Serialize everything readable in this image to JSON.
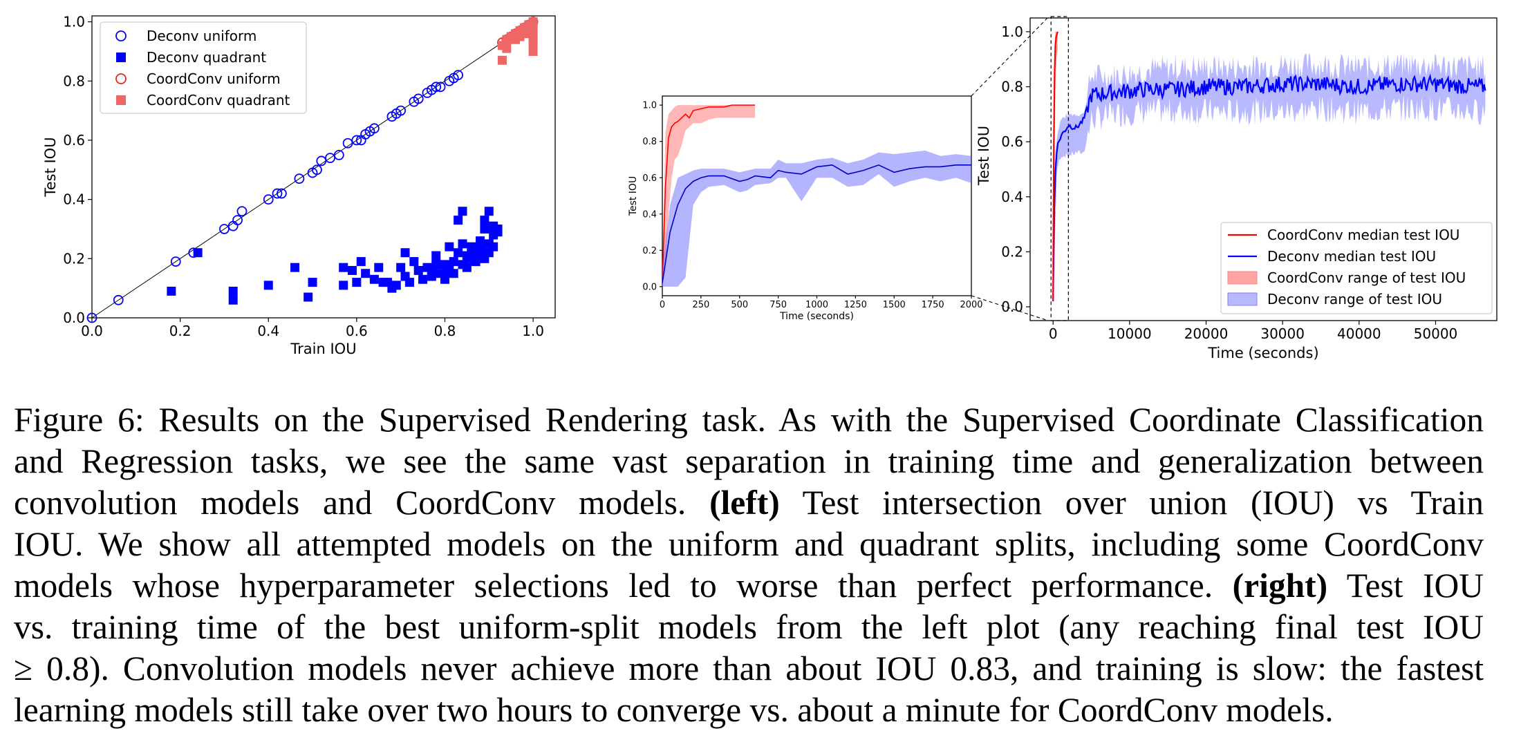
{
  "chart_data": [
    {
      "type": "scatter",
      "xlabel": "Train IOU",
      "ylabel": "Test IOU",
      "xlim": [
        0.0,
        1.05
      ],
      "ylim": [
        0.0,
        1.02
      ],
      "xticks": [
        "0.0",
        "0.2",
        "0.4",
        "0.6",
        "0.8",
        "1.0"
      ],
      "yticks": [
        "0.0",
        "0.2",
        "0.4",
        "0.6",
        "0.8",
        "1.0"
      ],
      "legend_position": "top-left",
      "diagonal_reference_line": true,
      "series": [
        {
          "name": "Deconv uniform",
          "marker": "open-circle",
          "color": "#0000ff",
          "points": [
            [
              0,
              0
            ],
            [
              0.06,
              0.06
            ],
            [
              0.19,
              0.19
            ],
            [
              0.23,
              0.22
            ],
            [
              0.3,
              0.3
            ],
            [
              0.32,
              0.31
            ],
            [
              0.33,
              0.33
            ],
            [
              0.34,
              0.36
            ],
            [
              0.4,
              0.4
            ],
            [
              0.42,
              0.42
            ],
            [
              0.43,
              0.42
            ],
            [
              0.47,
              0.47
            ],
            [
              0.5,
              0.49
            ],
            [
              0.51,
              0.5
            ],
            [
              0.52,
              0.53
            ],
            [
              0.54,
              0.54
            ],
            [
              0.56,
              0.55
            ],
            [
              0.58,
              0.59
            ],
            [
              0.6,
              0.6
            ],
            [
              0.61,
              0.6
            ],
            [
              0.62,
              0.62
            ],
            [
              0.63,
              0.63
            ],
            [
              0.64,
              0.64
            ],
            [
              0.68,
              0.68
            ],
            [
              0.69,
              0.69
            ],
            [
              0.7,
              0.7
            ],
            [
              0.73,
              0.73
            ],
            [
              0.74,
              0.74
            ],
            [
              0.76,
              0.76
            ],
            [
              0.77,
              0.77
            ],
            [
              0.78,
              0.78
            ],
            [
              0.79,
              0.78
            ],
            [
              0.81,
              0.8
            ],
            [
              0.82,
              0.81
            ],
            [
              0.83,
              0.82
            ]
          ]
        },
        {
          "name": "Deconv quadrant",
          "marker": "filled-square",
          "color": "#0000ff",
          "points": [
            [
              0.18,
              0.09
            ],
            [
              0.24,
              0.22
            ],
            [
              0.32,
              0.09
            ],
            [
              0.32,
              0.06
            ],
            [
              0.4,
              0.11
            ],
            [
              0.46,
              0.17
            ],
            [
              0.49,
              0.07
            ],
            [
              0.5,
              0.12
            ],
            [
              0.57,
              0.11
            ],
            [
              0.57,
              0.17
            ],
            [
              0.59,
              0.16
            ],
            [
              0.6,
              0.12
            ],
            [
              0.61,
              0.19
            ],
            [
              0.62,
              0.15
            ],
            [
              0.64,
              0.13
            ],
            [
              0.65,
              0.17
            ],
            [
              0.66,
              0.12
            ],
            [
              0.67,
              0.12
            ],
            [
              0.68,
              0.1
            ],
            [
              0.69,
              0.11
            ],
            [
              0.7,
              0.17
            ],
            [
              0.71,
              0.14
            ],
            [
              0.71,
              0.22
            ],
            [
              0.72,
              0.12
            ],
            [
              0.73,
              0.19
            ],
            [
              0.74,
              0.16
            ],
            [
              0.75,
              0.13
            ],
            [
              0.76,
              0.17
            ],
            [
              0.77,
              0.16
            ],
            [
              0.77,
              0.14
            ],
            [
              0.78,
              0.18
            ],
            [
              0.78,
              0.21
            ],
            [
              0.79,
              0.15
            ],
            [
              0.8,
              0.18
            ],
            [
              0.8,
              0.13
            ],
            [
              0.81,
              0.24
            ],
            [
              0.81,
              0.16
            ],
            [
              0.82,
              0.19
            ],
            [
              0.82,
              0.15
            ],
            [
              0.83,
              0.22
            ],
            [
              0.83,
              0.33
            ],
            [
              0.84,
              0.36
            ],
            [
              0.84,
              0.25
            ],
            [
              0.84,
              0.18
            ],
            [
              0.85,
              0.21
            ],
            [
              0.85,
              0.17
            ],
            [
              0.86,
              0.24
            ],
            [
              0.86,
              0.2
            ],
            [
              0.87,
              0.22
            ],
            [
              0.87,
              0.19
            ],
            [
              0.88,
              0.26
            ],
            [
              0.88,
              0.21
            ],
            [
              0.88,
              0.23
            ],
            [
              0.89,
              0.3
            ],
            [
              0.89,
              0.33
            ],
            [
              0.89,
              0.2
            ],
            [
              0.9,
              0.36
            ],
            [
              0.9,
              0.25
            ],
            [
              0.9,
              0.22
            ],
            [
              0.91,
              0.28
            ],
            [
              0.91,
              0.31
            ],
            [
              0.91,
              0.24
            ],
            [
              0.92,
              0.3
            ],
            [
              0.92,
              0.29
            ]
          ]
        },
        {
          "name": "CoordConv uniform",
          "marker": "open-circle",
          "color": "#ee2222",
          "points": [
            [
              0.93,
              0.93
            ],
            [
              0.94,
              0.94
            ],
            [
              0.95,
              0.95
            ],
            [
              0.96,
              0.96
            ],
            [
              0.97,
              0.97
            ],
            [
              0.98,
              0.98
            ],
            [
              0.99,
              0.99
            ],
            [
              1.0,
              1.0
            ]
          ]
        },
        {
          "name": "CoordConv quadrant",
          "marker": "filled-square",
          "color": "#ee6666",
          "points": [
            [
              0.93,
              0.92
            ],
            [
              0.93,
              0.87
            ],
            [
              0.94,
              0.94
            ],
            [
              0.94,
              0.91
            ],
            [
              0.95,
              0.95
            ],
            [
              0.96,
              0.94
            ],
            [
              0.96,
              0.96
            ],
            [
              0.97,
              0.95
            ],
            [
              0.97,
              0.97
            ],
            [
              0.98,
              0.97
            ],
            [
              0.98,
              0.98
            ],
            [
              0.99,
              0.96
            ],
            [
              0.99,
              0.99
            ],
            [
              1.0,
              0.9
            ],
            [
              1.0,
              0.93
            ],
            [
              1.0,
              0.95
            ],
            [
              1.0,
              0.97
            ],
            [
              1.0,
              0.99
            ],
            [
              1.0,
              1.0
            ]
          ]
        }
      ]
    },
    {
      "type": "line",
      "xlabel": "Time (seconds)",
      "ylabel": "Test IOU",
      "xlim": [
        0,
        2000
      ],
      "ylim": [
        -0.05,
        1.05
      ],
      "xticks": [
        "0",
        "250",
        "500",
        "750",
        "1000",
        "1250",
        "1500",
        "1750",
        "2000"
      ],
      "yticks": [
        "0.0",
        "0.2",
        "0.4",
        "0.6",
        "0.8",
        "1.0"
      ],
      "series": [
        {
          "name": "CoordConv",
          "color": "#ff0000",
          "x": [
            0,
            20,
            40,
            60,
            80,
            100,
            125,
            150,
            175,
            200,
            250,
            300,
            350,
            400,
            450,
            500,
            550,
            600
          ],
          "median": [
            0.02,
            0.55,
            0.82,
            0.88,
            0.9,
            0.91,
            0.93,
            0.95,
            0.93,
            0.97,
            0.98,
            0.99,
            0.99,
            0.99,
            1.0,
            1.0,
            1.0,
            1.0
          ],
          "low": [
            0.0,
            0.1,
            0.4,
            0.6,
            0.7,
            0.72,
            0.78,
            0.86,
            0.88,
            0.9,
            0.9,
            0.92,
            0.93,
            0.93,
            0.93,
            0.93,
            0.93,
            0.93
          ],
          "high": [
            0.1,
            0.85,
            0.95,
            0.97,
            0.99,
            1.0,
            1.0,
            1.0,
            1.0,
            1.0,
            1.0,
            1.0,
            1.0,
            1.0,
            1.0,
            1.0,
            1.0,
            1.0
          ]
        },
        {
          "name": "Deconv",
          "color": "#0000cc",
          "x": [
            0,
            50,
            100,
            150,
            200,
            250,
            300,
            400,
            500,
            550,
            600,
            700,
            750,
            800,
            900,
            1000,
            1100,
            1200,
            1300,
            1400,
            1500,
            1600,
            1700,
            1800,
            1900,
            2000
          ],
          "median": [
            0.02,
            0.3,
            0.45,
            0.54,
            0.58,
            0.6,
            0.61,
            0.61,
            0.58,
            0.59,
            0.61,
            0.6,
            0.64,
            0.63,
            0.62,
            0.66,
            0.67,
            0.62,
            0.64,
            0.67,
            0.63,
            0.65,
            0.66,
            0.66,
            0.67,
            0.67
          ],
          "low": [
            0.0,
            0.0,
            0.0,
            0.05,
            0.45,
            0.52,
            0.55,
            0.56,
            0.52,
            0.53,
            0.56,
            0.57,
            0.6,
            0.6,
            0.47,
            0.6,
            0.6,
            0.55,
            0.56,
            0.62,
            0.55,
            0.58,
            0.6,
            0.58,
            0.6,
            0.57
          ],
          "high": [
            0.1,
            0.45,
            0.6,
            0.62,
            0.64,
            0.65,
            0.65,
            0.65,
            0.63,
            0.64,
            0.65,
            0.65,
            0.7,
            0.68,
            0.68,
            0.7,
            0.71,
            0.68,
            0.7,
            0.74,
            0.73,
            0.74,
            0.75,
            0.72,
            0.73,
            0.72
          ]
        }
      ]
    },
    {
      "type": "line",
      "xlabel": "Time (seconds)",
      "ylabel": "Test IOU",
      "xlim": [
        -3000,
        58000
      ],
      "ylim": [
        -0.05,
        1.05
      ],
      "xticks": [
        "0",
        "10000",
        "20000",
        "30000",
        "40000",
        "50000"
      ],
      "yticks": [
        "0.0",
        "0.2",
        "0.4",
        "0.6",
        "0.8",
        "1.0"
      ],
      "legend_position": "bottom-right",
      "zoom_region_x": [
        0,
        2000
      ],
      "series": [
        {
          "name": "CoordConv median test IOU",
          "color": "#ff0000",
          "x": [
            0,
            100,
            200,
            300,
            400,
            500,
            600
          ],
          "median": [
            0.02,
            0.6,
            0.85,
            0.95,
            0.98,
            0.99,
            1.0
          ]
        },
        {
          "name": "Deconv median test IOU",
          "color": "#0000ff",
          "noise": 0.03,
          "x": [
            0,
            200,
            500,
            1000,
            2000,
            3000,
            4000,
            5000,
            8000,
            12000,
            16000,
            20000,
            25000,
            30000,
            35000,
            40000,
            45000,
            50000,
            55000,
            56500
          ],
          "median": [
            0.02,
            0.45,
            0.58,
            0.62,
            0.66,
            0.65,
            0.68,
            0.77,
            0.78,
            0.79,
            0.79,
            0.8,
            0.8,
            0.81,
            0.81,
            0.8,
            0.81,
            0.81,
            0.8,
            0.8
          ]
        },
        {
          "name": "CoordConv range of test IOU",
          "color": "#ff9999",
          "x": [
            0,
            100,
            200,
            300,
            400,
            500,
            600
          ],
          "low": [
            0.0,
            0.2,
            0.5,
            0.8,
            0.88,
            0.92,
            0.93
          ],
          "high": [
            0.1,
            0.85,
            0.95,
            1.0,
            1.0,
            1.0,
            1.0
          ]
        },
        {
          "name": "Deconv range of test IOU",
          "color": "#9999ff",
          "noise": 0.05,
          "x": [
            0,
            200,
            500,
            1000,
            2000,
            3000,
            4000,
            5000,
            8000,
            12000,
            16000,
            20000,
            25000,
            30000,
            35000,
            40000,
            45000,
            50000,
            55000,
            56500
          ],
          "low": [
            0.0,
            0.2,
            0.5,
            0.55,
            0.55,
            0.56,
            0.56,
            0.68,
            0.7,
            0.71,
            0.71,
            0.71,
            0.71,
            0.71,
            0.72,
            0.71,
            0.72,
            0.72,
            0.71,
            0.71
          ],
          "high": [
            0.1,
            0.55,
            0.62,
            0.68,
            0.7,
            0.7,
            0.7,
            0.84,
            0.84,
            0.86,
            0.87,
            0.87,
            0.87,
            0.88,
            0.88,
            0.87,
            0.88,
            0.88,
            0.87,
            0.87
          ]
        }
      ]
    }
  ],
  "caption": {
    "lines": [
      [
        {
          "t": "Figure 6:  Results on the Supervised Rendering task. As with the Supervised Coordinate Classification",
          "b": false
        }
      ],
      [
        {
          "t": "and Regression tasks, we see the same vast separation in training time and generalization between",
          "b": false
        }
      ],
      [
        {
          "t": "convolution models and CoordConv models.  ",
          "b": false
        },
        {
          "t": "(left)",
          "b": true
        },
        {
          "t": " Test intersection over union (IOU) vs Train",
          "b": false
        }
      ],
      [
        {
          "t": "IOU. We show all attempted models on the uniform and quadrant splits, including some CoordConv",
          "b": false
        }
      ],
      [
        {
          "t": "models whose hyperparameter selections led to worse than perfect performance. ",
          "b": false
        },
        {
          "t": "(right)",
          "b": true
        },
        {
          "t": " Test IOU",
          "b": false
        }
      ],
      [
        {
          "t": "vs.  training time of the best uniform-split models from the left plot (any reaching final test IOU",
          "b": false
        }
      ],
      [
        {
          "t": "≥ 0.8). Convolution models never achieve more than about IOU 0.83, and training is slow: the fastest",
          "b": false
        }
      ],
      [
        {
          "t": "learning models still take over two hours to converge vs. about a minute for CoordConv models.",
          "b": false
        }
      ]
    ]
  }
}
